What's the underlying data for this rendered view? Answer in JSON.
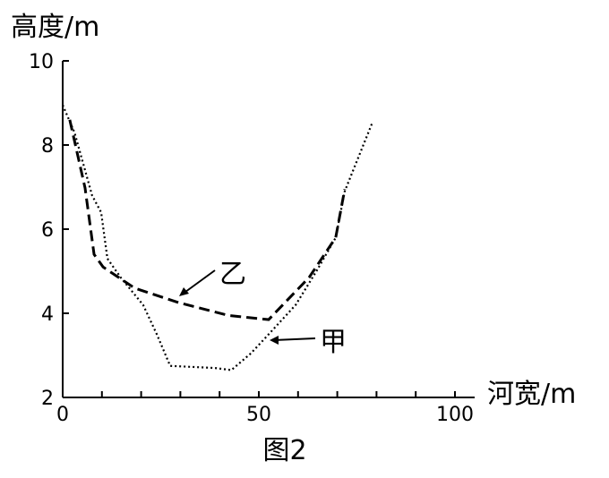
{
  "chart_data": {
    "type": "line",
    "caption": "图2",
    "y_label": "高度/m",
    "x_label": "河宽/m",
    "annotations": [
      "乙",
      "甲"
    ],
    "series": [
      {
        "name": "甲",
        "style": "dotted",
        "color": "#000000",
        "x": [
          0,
          3,
          7.5,
          9.8,
          11.4,
          14.8,
          20.5,
          24,
          27.4,
          38.8,
          43,
          48,
          52.5,
          59.4,
          65,
          69.6,
          71.9,
          78.8
        ],
        "values": [
          8.95,
          8.3,
          6.8,
          6.4,
          5.3,
          4.85,
          4.2,
          3.5,
          2.75,
          2.7,
          2.65,
          3.05,
          3.5,
          4.2,
          5.05,
          5.8,
          6.9,
          8.5
        ]
      },
      {
        "name": "乙",
        "style": "dashed",
        "color": "#000000",
        "x": [
          1.8,
          5.7,
          8,
          10.3,
          18.3,
          29.7,
          42.2,
          52.5,
          62.8,
          69.6,
          71.9
        ],
        "values": [
          8.6,
          6.98,
          5.4,
          5.1,
          4.6,
          4.25,
          3.95,
          3.85,
          4.85,
          5.8,
          6.95
        ]
      }
    ],
    "xlim": [
      0,
      100
    ],
    "ylim": [
      2,
      10
    ],
    "xticks": [
      0,
      50,
      100
    ],
    "xminor_ticks": [
      10,
      20,
      30,
      40,
      60,
      70,
      80,
      90
    ],
    "yticks": [
      2,
      4,
      6,
      8,
      10
    ]
  }
}
